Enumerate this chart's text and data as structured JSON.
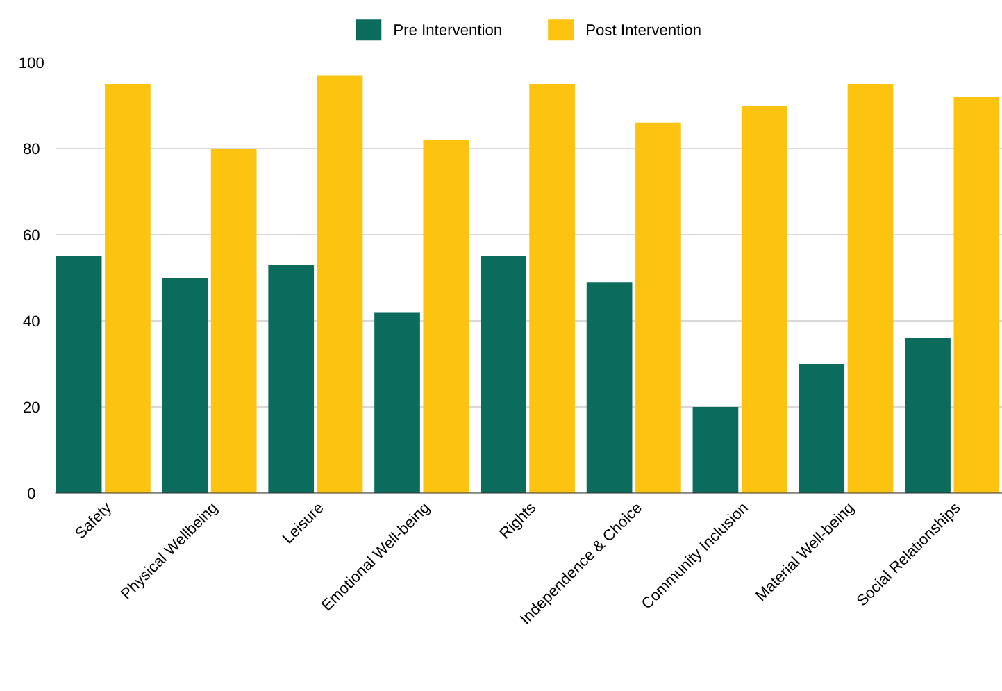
{
  "chart_data": {
    "type": "bar",
    "categories": [
      "Safety",
      "Physical Wellbeing",
      "Leisure",
      "Emotional Well-being",
      "Rights",
      "Independence & Choice",
      "Community Inclusion",
      "Material Well-being",
      "Social Relationships"
    ],
    "series": [
      {
        "name": "Pre Intervention",
        "color": "#0b6b5d",
        "values": [
          55,
          50,
          53,
          42,
          55,
          49,
          20,
          30,
          36
        ]
      },
      {
        "name": "Post Intervention",
        "color": "#fdc311",
        "values": [
          95,
          80,
          97,
          82,
          95,
          86,
          90,
          95,
          92
        ]
      }
    ],
    "ylim": [
      0,
      100
    ],
    "yticks": [
      0,
      20,
      40,
      60,
      80,
      100
    ],
    "grid": "y",
    "legend": "top"
  }
}
